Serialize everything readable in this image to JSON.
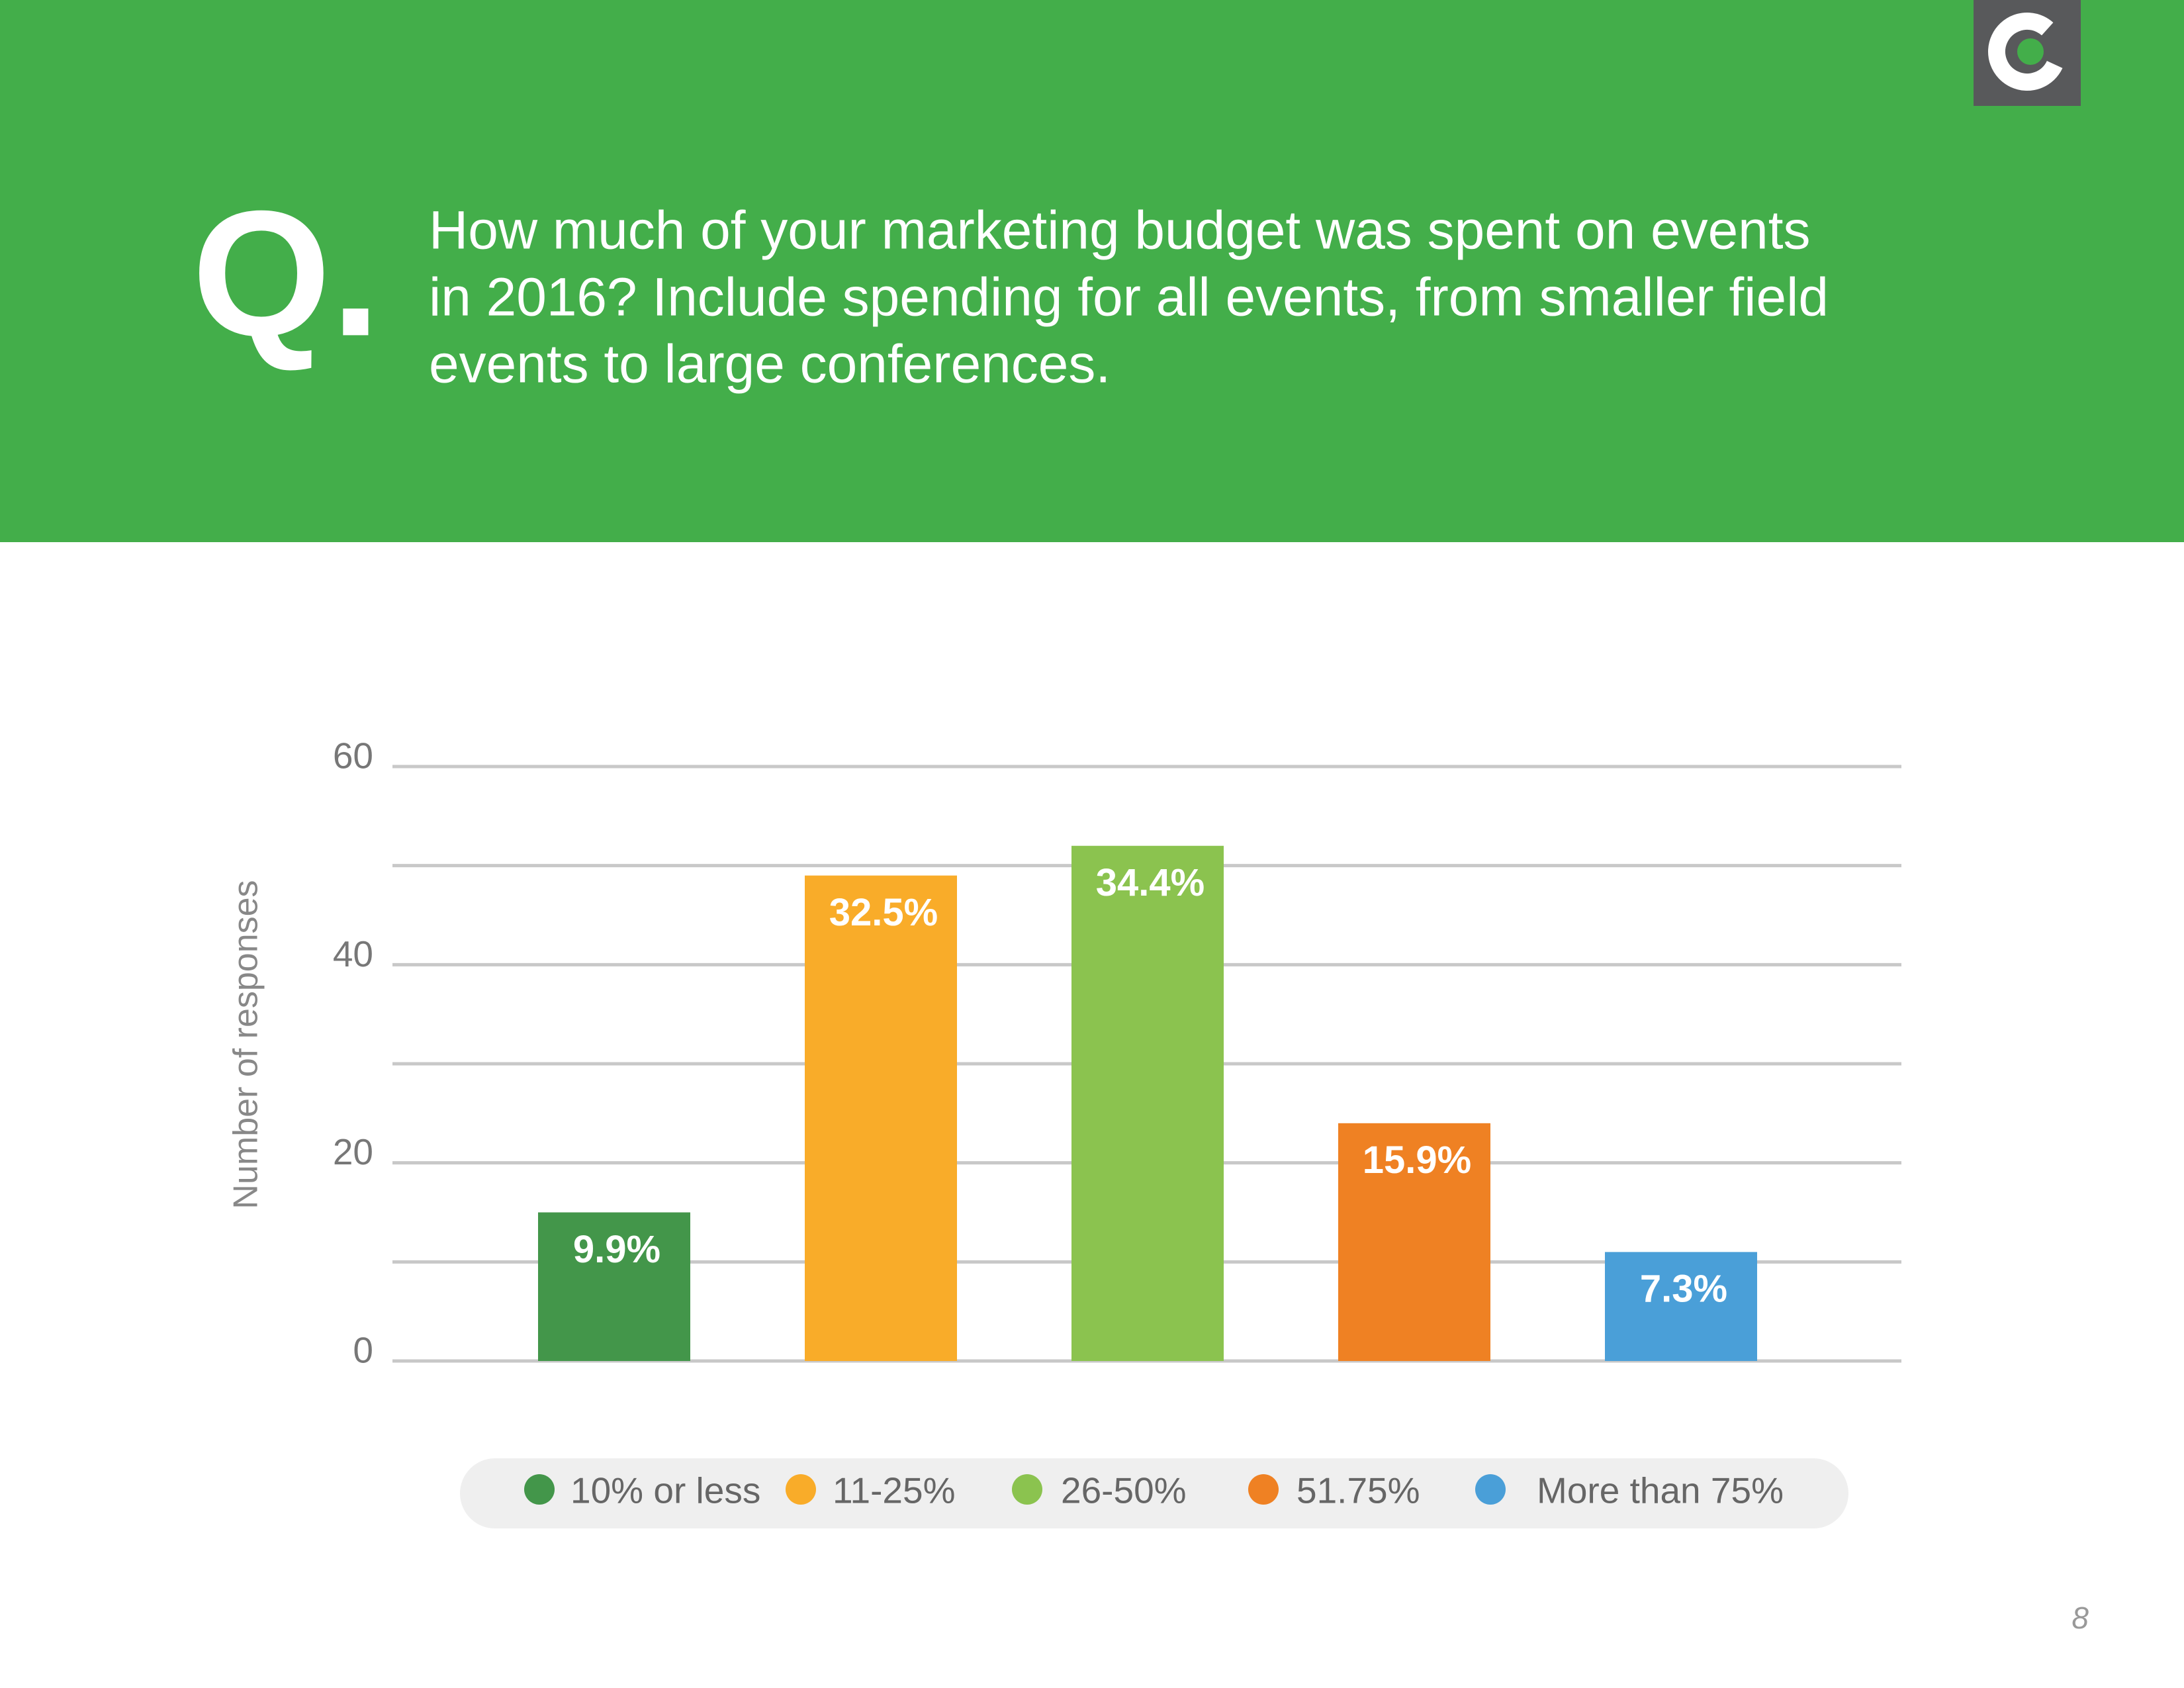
{
  "header": {
    "marker": "Q.",
    "question": [
      "How much of your marketing budget was spent on events",
      "in 2016? Include spending for all events, from smaller field",
      "events to large conferences."
    ]
  },
  "chart_data": {
    "type": "bar",
    "y_label": "Number of responses",
    "categories": [
      "10% or less",
      "11-25%",
      "26-50%",
      "51.75%",
      "More than 75%"
    ],
    "values": [
      15,
      49,
      52,
      24,
      11
    ],
    "share_labels": [
      "9.9%",
      "32.5%",
      "34.4%",
      "15.9%",
      "7.3%"
    ],
    "colors": [
      "#43964a",
      "#f9ac29",
      "#8bc34f",
      "#ef8123",
      "#4a9fd8"
    ],
    "ylim": [
      0,
      60
    ],
    "yticks": [
      0,
      20,
      40,
      60
    ],
    "minor_yticks": [
      10,
      30,
      50
    ],
    "grid": true,
    "legend": "bottom"
  },
  "page_number": "8"
}
